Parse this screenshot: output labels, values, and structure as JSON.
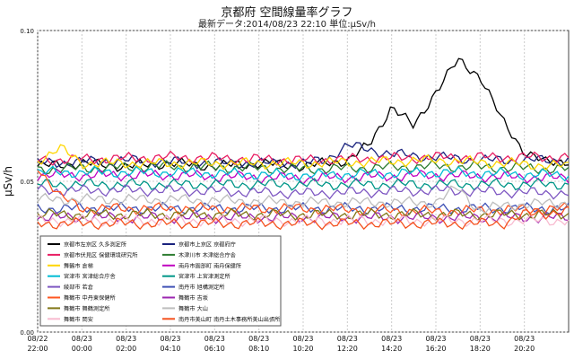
{
  "title": "京都府 空間線量率グラフ",
  "subtitle": "最新データ:2014/08/23 22:10 単位:μSv/h",
  "chart_data": {
    "type": "line",
    "ylabel": "μSv/h",
    "ylim": [
      0,
      0.1
    ],
    "yticks": [
      "0.10",
      "0.05",
      "0.00"
    ],
    "xlim": [
      0,
      24
    ],
    "xticks": [
      {
        "t": 0,
        "date": "08/22",
        "time": "22:00"
      },
      {
        "t": 2,
        "date": "08/23",
        "time": "00:00"
      },
      {
        "t": 4,
        "date": "08/23",
        "time": "02:00"
      },
      {
        "t": 6,
        "date": "08/23",
        "time": "04:10"
      },
      {
        "t": 8,
        "date": "08/23",
        "time": "06:10"
      },
      {
        "t": 10,
        "date": "08/23",
        "time": "08:10"
      },
      {
        "t": 12,
        "date": "08/23",
        "time": "10:20"
      },
      {
        "t": 14,
        "date": "08/23",
        "time": "12:20"
      },
      {
        "t": 16,
        "date": "08/23",
        "time": "14:20"
      },
      {
        "t": 18,
        "date": "08/23",
        "time": "16:20"
      },
      {
        "t": 20,
        "date": "08/23",
        "time": "18:20"
      },
      {
        "t": 22,
        "date": "08/23",
        "time": "20:20"
      }
    ],
    "grid": true,
    "legend_position": "bottom-left",
    "series": [
      {
        "name": "京都市左京区 久多測定所",
        "color": "#000000",
        "x": [
          0,
          2,
          4,
          6,
          8,
          10,
          12,
          14,
          15,
          16,
          17,
          18,
          19,
          20,
          21,
          22,
          23,
          24
        ],
        "y": [
          0.055,
          0.056,
          0.055,
          0.056,
          0.055,
          0.056,
          0.055,
          0.057,
          0.062,
          0.075,
          0.068,
          0.08,
          0.09,
          0.085,
          0.07,
          0.06,
          0.056,
          0.057
        ]
      },
      {
        "name": "京都市上京区 京都府庁",
        "color": "#1a237e",
        "x": [
          0,
          4,
          8,
          12,
          13,
          14,
          16,
          20,
          24
        ],
        "y": [
          0.056,
          0.057,
          0.056,
          0.056,
          0.057,
          0.062,
          0.059,
          0.057,
          0.057
        ]
      },
      {
        "name": "京都市伏見区 保健環境研究所",
        "color": "#e91e63",
        "x": [
          0,
          6,
          12,
          18,
          24
        ],
        "y": [
          0.057,
          0.058,
          0.057,
          0.058,
          0.058
        ]
      },
      {
        "name": "木津川市 木津総合庁舎",
        "color": "#2e7d32",
        "x": [
          0,
          6,
          12,
          18,
          24
        ],
        "y": [
          0.054,
          0.055,
          0.054,
          0.055,
          0.054
        ]
      },
      {
        "name": "舞鶴市 倉梯",
        "color": "#ffd600",
        "x": [
          0,
          1,
          2,
          6,
          12,
          18,
          24
        ],
        "y": [
          0.057,
          0.061,
          0.056,
          0.056,
          0.056,
          0.057,
          0.055
        ]
      },
      {
        "name": "南丹市園部町 南丹保健所",
        "color": "#c000c0",
        "x": [
          0,
          6,
          12,
          18,
          24
        ],
        "y": [
          0.052,
          0.052,
          0.051,
          0.052,
          0.051
        ]
      },
      {
        "name": "宮津市 宮津総合庁舎",
        "color": "#00bcd4",
        "x": [
          0,
          6,
          12,
          18,
          24
        ],
        "y": [
          0.053,
          0.053,
          0.052,
          0.053,
          0.052
        ]
      },
      {
        "name": "宮津市 上宮津測定所",
        "color": "#009688",
        "x": [
          0,
          6,
          12,
          18,
          24
        ],
        "y": [
          0.049,
          0.049,
          0.049,
          0.049,
          0.049
        ]
      },
      {
        "name": "綾部市 若倉",
        "color": "#7e57c2",
        "x": [
          0,
          6,
          12,
          18,
          24
        ],
        "y": [
          0.047,
          0.047,
          0.046,
          0.047,
          0.046
        ]
      },
      {
        "name": "南丹市 旭構測定所",
        "color": "#3f51b5",
        "x": [
          0,
          6,
          12,
          18,
          24
        ],
        "y": [
          0.041,
          0.041,
          0.041,
          0.041,
          0.041
        ]
      },
      {
        "name": "舞鶴市 中丹東保健所",
        "color": "#ff5722",
        "x": [
          0,
          1,
          2,
          6,
          12,
          18,
          24
        ],
        "y": [
          0.055,
          0.045,
          0.041,
          0.041,
          0.041,
          0.04,
          0.041
        ]
      },
      {
        "name": "舞鶴市 吉坂",
        "color": "#9c27b0",
        "x": [
          0,
          6,
          12,
          18,
          24
        ],
        "y": [
          0.038,
          0.038,
          0.038,
          0.038,
          0.038
        ]
      },
      {
        "name": "舞鶴市 舞鶴測定所",
        "color": "#827717",
        "x": [
          0,
          6,
          12,
          18,
          24
        ],
        "y": [
          0.039,
          0.039,
          0.039,
          0.039,
          0.039
        ]
      },
      {
        "name": "舞鶴市 大山",
        "color": "#bdbdbd",
        "x": [
          0,
          6,
          12,
          18,
          19,
          20,
          21,
          24
        ],
        "y": [
          0.044,
          0.044,
          0.043,
          0.043,
          0.048,
          0.04,
          0.042,
          0.043
        ]
      },
      {
        "name": "舞鶴市 岡安",
        "color": "#f8bbd0",
        "x": [
          0,
          6,
          12,
          18,
          24
        ],
        "y": [
          0.037,
          0.037,
          0.037,
          0.037,
          0.037
        ]
      },
      {
        "name": "南丹市美山町 南丹土木事務所美山出張所",
        "color": "#f4511e",
        "x": [
          0,
          6,
          12,
          18,
          21,
          22,
          24
        ],
        "y": [
          0.036,
          0.036,
          0.036,
          0.036,
          0.036,
          0.039,
          0.04
        ]
      }
    ]
  }
}
